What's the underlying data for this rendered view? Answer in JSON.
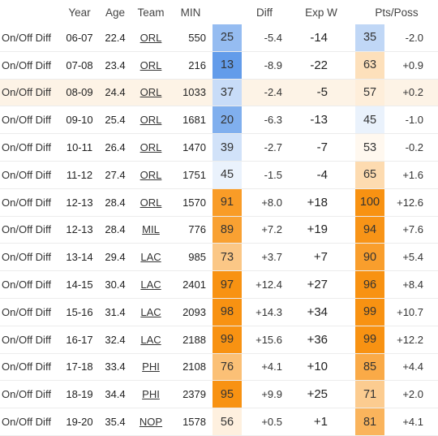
{
  "headers": {
    "label": "",
    "year": "Year",
    "age": "Age",
    "team": "Team",
    "min": "MIN",
    "diff": "Diff",
    "expw": "Exp W",
    "pts": "Pts/Poss"
  },
  "highlight_row": 2,
  "rows": [
    {
      "label": "On/Off Diff",
      "year": "06-07",
      "age": "22.4",
      "team": "ORL",
      "min": "550",
      "diff_pct": "25",
      "diff_val": "-5.4",
      "exp_w": "-14",
      "pts_pct": "35",
      "pts_val": "-2.0"
    },
    {
      "label": "On/Off Diff",
      "year": "07-08",
      "age": "23.4",
      "team": "ORL",
      "min": "216",
      "diff_pct": "13",
      "diff_val": "-8.9",
      "exp_w": "-22",
      "pts_pct": "63",
      "pts_val": "+0.9"
    },
    {
      "label": "On/Off Diff",
      "year": "08-09",
      "age": "24.4",
      "team": "ORL",
      "min": "1033",
      "diff_pct": "37",
      "diff_val": "-2.4",
      "exp_w": "-5",
      "pts_pct": "57",
      "pts_val": "+0.2"
    },
    {
      "label": "On/Off Diff",
      "year": "09-10",
      "age": "25.4",
      "team": "ORL",
      "min": "1681",
      "diff_pct": "20",
      "diff_val": "-6.3",
      "exp_w": "-13",
      "pts_pct": "45",
      "pts_val": "-1.0"
    },
    {
      "label": "On/Off Diff",
      "year": "10-11",
      "age": "26.4",
      "team": "ORL",
      "min": "1470",
      "diff_pct": "39",
      "diff_val": "-2.7",
      "exp_w": "-7",
      "pts_pct": "53",
      "pts_val": "-0.2"
    },
    {
      "label": "On/Off Diff",
      "year": "11-12",
      "age": "27.4",
      "team": "ORL",
      "min": "1751",
      "diff_pct": "45",
      "diff_val": "-1.5",
      "exp_w": "-4",
      "pts_pct": "65",
      "pts_val": "+1.6"
    },
    {
      "label": "On/Off Diff",
      "year": "12-13",
      "age": "28.4",
      "team": "ORL",
      "min": "1570",
      "diff_pct": "91",
      "diff_val": "+8.0",
      "exp_w": "+18",
      "pts_pct": "100",
      "pts_val": "+12.6"
    },
    {
      "label": "On/Off Diff",
      "year": "12-13",
      "age": "28.4",
      "team": "MIL",
      "min": "776",
      "diff_pct": "89",
      "diff_val": "+7.2",
      "exp_w": "+19",
      "pts_pct": "94",
      "pts_val": "+7.6"
    },
    {
      "label": "On/Off Diff",
      "year": "13-14",
      "age": "29.4",
      "team": "LAC",
      "min": "985",
      "diff_pct": "73",
      "diff_val": "+3.7",
      "exp_w": "+7",
      "pts_pct": "90",
      "pts_val": "+5.4"
    },
    {
      "label": "On/Off Diff",
      "year": "14-15",
      "age": "30.4",
      "team": "LAC",
      "min": "2401",
      "diff_pct": "97",
      "diff_val": "+12.4",
      "exp_w": "+27",
      "pts_pct": "96",
      "pts_val": "+8.4"
    },
    {
      "label": "On/Off Diff",
      "year": "15-16",
      "age": "31.4",
      "team": "LAC",
      "min": "2093",
      "diff_pct": "98",
      "diff_val": "+14.3",
      "exp_w": "+34",
      "pts_pct": "99",
      "pts_val": "+10.7"
    },
    {
      "label": "On/Off Diff",
      "year": "16-17",
      "age": "32.4",
      "team": "LAC",
      "min": "2188",
      "diff_pct": "99",
      "diff_val": "+15.6",
      "exp_w": "+36",
      "pts_pct": "99",
      "pts_val": "+12.2"
    },
    {
      "label": "On/Off Diff",
      "year": "17-18",
      "age": "33.4",
      "team": "PHI",
      "min": "2108",
      "diff_pct": "76",
      "diff_val": "+4.1",
      "exp_w": "+10",
      "pts_pct": "85",
      "pts_val": "+4.4"
    },
    {
      "label": "On/Off Diff",
      "year": "18-19",
      "age": "34.4",
      "team": "PHI",
      "min": "2379",
      "diff_pct": "95",
      "diff_val": "+9.9",
      "exp_w": "+25",
      "pts_pct": "71",
      "pts_val": "+2.0"
    },
    {
      "label": "On/Off Diff",
      "year": "19-20",
      "age": "35.4",
      "team": "NOP",
      "min": "1578",
      "diff_pct": "56",
      "diff_val": "+0.5",
      "exp_w": "+1",
      "pts_pct": "81",
      "pts_val": "+4.1"
    }
  ]
}
